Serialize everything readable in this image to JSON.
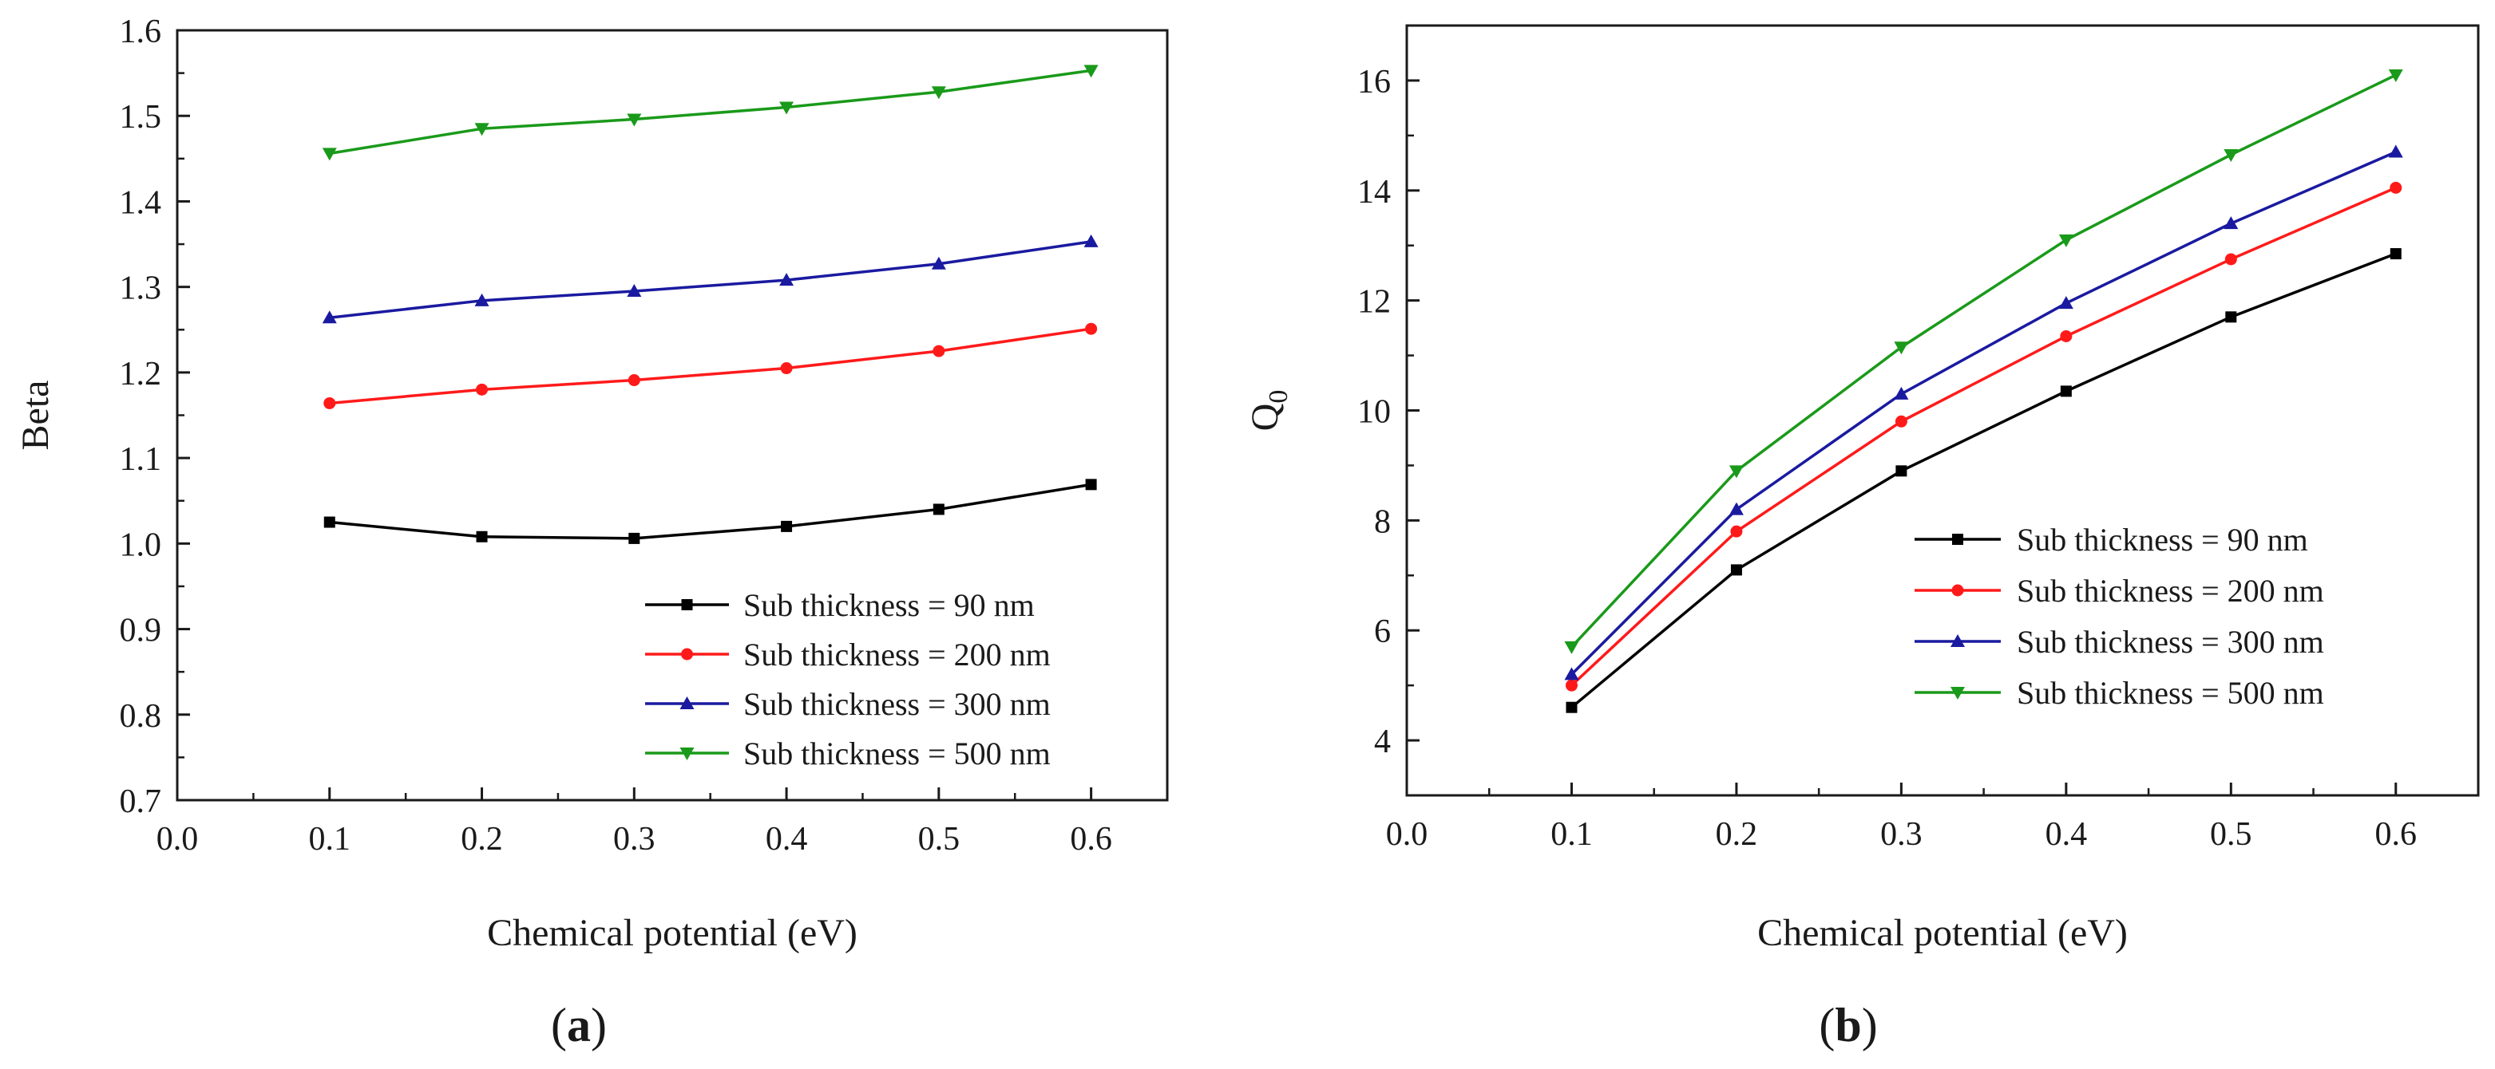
{
  "colors": {
    "black": "#000000",
    "red": "#ff1a1a",
    "blue": "#1a1aa0",
    "green": "#1a9a1a",
    "axis": "#1a1a1a"
  },
  "chart_data": [
    {
      "type": "line",
      "panel": "a",
      "caption": {
        "open": "(",
        "letter": "a",
        "close": ")"
      },
      "xlabel": "Chemical potential (eV)",
      "ylabel": "Beta",
      "xlim": [
        0.0,
        0.65
      ],
      "ylim": [
        0.7,
        1.6
      ],
      "xticks": [
        "0.0",
        "0.1",
        "0.2",
        "0.3",
        "0.4",
        "0.5",
        "0.6"
      ],
      "yticks": [
        "0.7",
        "0.8",
        "0.9",
        "1.0",
        "1.1",
        "1.2",
        "1.3",
        "1.4",
        "1.5",
        "1.6"
      ],
      "legend_position": "lower-right",
      "x": [
        0.1,
        0.2,
        0.3,
        0.4,
        0.5,
        0.6
      ],
      "series": [
        {
          "name": "Sub thickness = 90 nm",
          "color": "#000000",
          "marker": "square",
          "values": [
            1.025,
            1.008,
            1.006,
            1.02,
            1.04,
            1.069
          ]
        },
        {
          "name": "Sub thickness = 200 nm",
          "color": "#ff1a1a",
          "marker": "circle",
          "values": [
            1.164,
            1.18,
            1.191,
            1.205,
            1.225,
            1.251
          ]
        },
        {
          "name": "Sub thickness = 300 nm",
          "color": "#1a1aa0",
          "marker": "triangle-up",
          "values": [
            1.264,
            1.284,
            1.295,
            1.308,
            1.327,
            1.353
          ]
        },
        {
          "name": "Sub thickness = 500 nm",
          "color": "#1a9a1a",
          "marker": "triangle-down",
          "values": [
            1.456,
            1.485,
            1.496,
            1.51,
            1.528,
            1.553
          ]
        }
      ]
    },
    {
      "type": "line",
      "panel": "b",
      "caption": {
        "open": "(",
        "letter": "b",
        "close": ")"
      },
      "xlabel": "Chemical potential (eV)",
      "ylabel": "Q",
      "ylabel_sub": "0",
      "xlim": [
        0.0,
        0.65
      ],
      "ylim": [
        3.0,
        17.0
      ],
      "xticks": [
        "0.0",
        "0.1",
        "0.2",
        "0.3",
        "0.4",
        "0.5",
        "0.6"
      ],
      "yticks": [
        "4",
        "6",
        "8",
        "10",
        "12",
        "14",
        "16"
      ],
      "legend_position": "lower-right",
      "x": [
        0.1,
        0.2,
        0.3,
        0.4,
        0.5,
        0.6
      ],
      "series": [
        {
          "name": "Sub thickness = 90 nm",
          "color": "#000000",
          "marker": "square",
          "values": [
            4.6,
            7.1,
            8.9,
            10.35,
            11.7,
            12.85
          ]
        },
        {
          "name": "Sub thickness = 200 nm",
          "color": "#ff1a1a",
          "marker": "circle",
          "values": [
            5.0,
            7.8,
            9.8,
            11.35,
            12.75,
            14.05
          ]
        },
        {
          "name": "Sub thickness = 300 nm",
          "color": "#1a1aa0",
          "marker": "triangle-up",
          "values": [
            5.2,
            8.2,
            10.3,
            11.95,
            13.4,
            14.7
          ]
        },
        {
          "name": "Sub thickness = 500 nm",
          "color": "#1a9a1a",
          "marker": "triangle-down",
          "values": [
            5.7,
            8.9,
            11.15,
            13.1,
            14.65,
            16.1
          ]
        }
      ]
    }
  ]
}
